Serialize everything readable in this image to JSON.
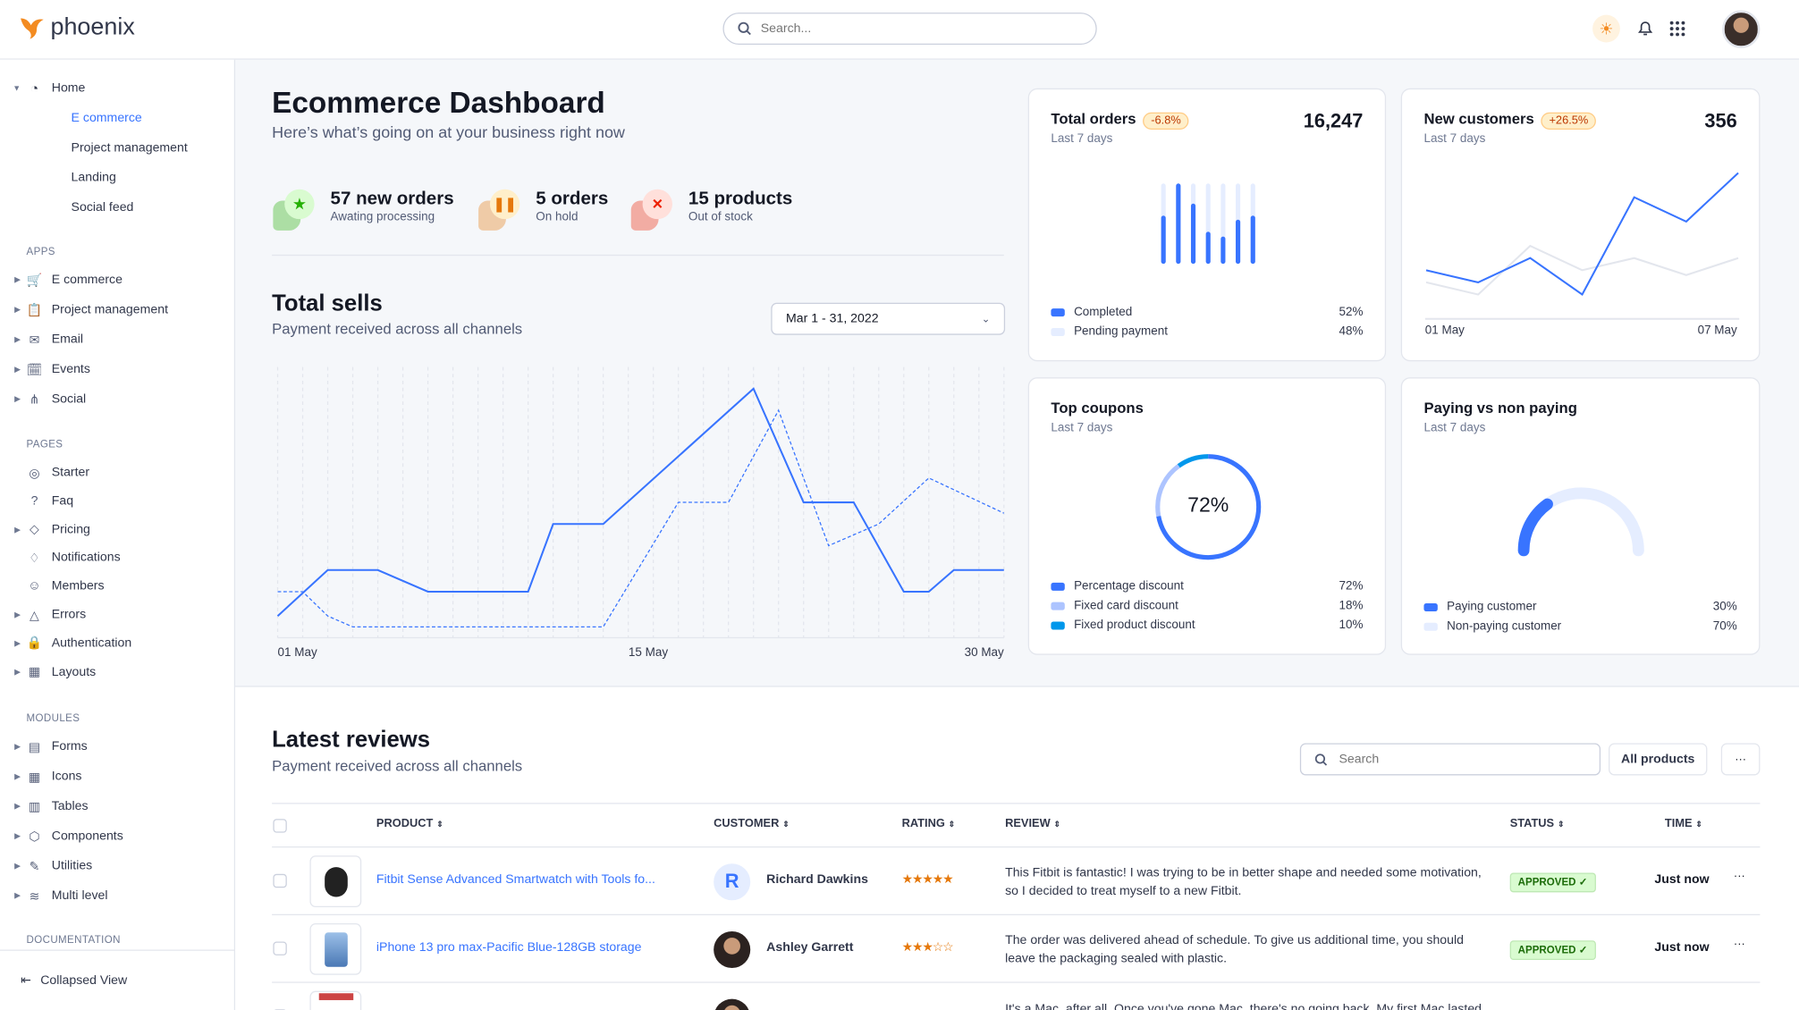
{
  "app": {
    "name": "phoenix",
    "search_placeholder": "Search..."
  },
  "colors": {
    "primary": "#3874ff",
    "light": "#e5edff",
    "success": "#25b003",
    "warning": "#e5780b",
    "danger": "#ed2000"
  },
  "sidebar": {
    "home": {
      "label": "Home",
      "children": [
        "E commerce",
        "Project management",
        "Landing",
        "Social feed"
      ],
      "active": "E commerce"
    },
    "sections": [
      {
        "title": "APPS",
        "items": [
          {
            "label": "E commerce",
            "icon": "cart-icon",
            "caret": true
          },
          {
            "label": "Project management",
            "icon": "clipboard-icon",
            "caret": true
          },
          {
            "label": "Email",
            "icon": "mail-icon",
            "caret": true
          },
          {
            "label": "Events",
            "icon": "bookmark-icon",
            "caret": true
          },
          {
            "label": "Social",
            "icon": "share-icon",
            "caret": true
          }
        ]
      },
      {
        "title": "PAGES",
        "items": [
          {
            "label": "Starter",
            "icon": "compass-icon",
            "caret": false
          },
          {
            "label": "Faq",
            "icon": "help-icon",
            "caret": false
          },
          {
            "label": "Pricing",
            "icon": "tag-icon",
            "caret": true
          },
          {
            "label": "Notifications",
            "icon": "bell-icon",
            "caret": false
          },
          {
            "label": "Members",
            "icon": "users-icon",
            "caret": false
          },
          {
            "label": "Errors",
            "icon": "alert-icon",
            "caret": true
          },
          {
            "label": "Authentication",
            "icon": "lock-icon",
            "caret": true
          },
          {
            "label": "Layouts",
            "icon": "layout-icon",
            "caret": true
          }
        ]
      },
      {
        "title": "MODULES",
        "items": [
          {
            "label": "Forms",
            "icon": "file-icon",
            "caret": true
          },
          {
            "label": "Icons",
            "icon": "grid-icon",
            "caret": true
          },
          {
            "label": "Tables",
            "icon": "columns-icon",
            "caret": true
          },
          {
            "label": "Components",
            "icon": "package-icon",
            "caret": true
          },
          {
            "label": "Utilities",
            "icon": "tool-icon",
            "caret": true
          },
          {
            "label": "Multi level",
            "icon": "layers-icon",
            "caret": true
          }
        ]
      },
      {
        "title": "DOCUMENTATION",
        "items": []
      }
    ],
    "collapse": "Collapsed View"
  },
  "header": {
    "title": "Ecommerce Dashboard",
    "subtitle": "Here’s what’s going on at your business right now"
  },
  "stats": [
    {
      "title": "57 new orders",
      "sub": "Awating processing",
      "icon": "star-icon",
      "color": "#25b003",
      "bg": "#d9fbd0"
    },
    {
      "title": "5 orders",
      "sub": "On hold",
      "icon": "pause-icon",
      "color": "#e5780b",
      "bg": "#ffefca"
    },
    {
      "title": "15 products",
      "sub": "Out of stock",
      "icon": "x-icon",
      "color": "#ed2000",
      "bg": "#ffe0db"
    }
  ],
  "sells": {
    "title": "Total sells",
    "subtitle": "Payment received across all channels",
    "date": "Mar 1 - 31, 2022"
  },
  "chart_data": [
    {
      "type": "line",
      "title": "Total sells",
      "x_ticks": [
        "01 May",
        "15 May",
        "30 May"
      ],
      "series": [
        {
          "style": "solid",
          "points": [
            [
              1,
              8
            ],
            [
              3,
              25
            ],
            [
              5,
              25
            ],
            [
              7,
              17
            ],
            [
              11,
              17
            ],
            [
              12,
              42
            ],
            [
              14,
              42
            ],
            [
              20,
              92
            ],
            [
              22,
              50
            ],
            [
              24,
              50
            ],
            [
              26,
              17
            ],
            [
              27,
              17
            ],
            [
              28,
              25
            ],
            [
              30,
              25
            ]
          ]
        },
        {
          "style": "dashed",
          "points": [
            [
              1,
              17
            ],
            [
              2,
              17
            ],
            [
              3,
              8
            ],
            [
              4,
              4
            ],
            [
              14,
              4
            ],
            [
              17,
              50
            ],
            [
              19,
              50
            ],
            [
              21,
              84
            ],
            [
              23,
              34
            ],
            [
              25,
              42
            ],
            [
              27,
              59
            ],
            [
              30,
              46
            ]
          ]
        }
      ],
      "xlim": [
        1,
        30
      ],
      "ylim": [
        0,
        100
      ],
      "grid": "vertical"
    },
    {
      "type": "bar",
      "title": "Total orders",
      "completed_fraction": [
        0.6,
        1,
        0.75,
        0.4,
        0.34,
        0.55,
        0.6
      ]
    },
    {
      "type": "line",
      "title": "New customers",
      "x_ticks": [
        "01 May",
        "07 May"
      ],
      "series": [
        {
          "color": "#3874ff",
          "values": [
            40,
            30,
            50,
            20,
            100,
            80,
            120
          ]
        },
        {
          "color": "#e3e6ed",
          "values": [
            30,
            20,
            60,
            40,
            50,
            36,
            50
          ]
        }
      ],
      "ylim": [
        0,
        130
      ]
    },
    {
      "type": "pie",
      "title": "Top coupons",
      "values": [
        72,
        18,
        10
      ]
    },
    {
      "type": "pie",
      "title": "Paying vs non paying",
      "values": [
        30,
        70
      ]
    }
  ],
  "orders": {
    "title": "Total orders",
    "badge": "-6.8%",
    "value": "16,247",
    "sub": "Last 7 days",
    "legend": [
      {
        "label": "Completed",
        "value": "52%",
        "color": "#3874ff"
      },
      {
        "label": "Pending payment",
        "value": "48%",
        "color": "#e5edff"
      }
    ]
  },
  "customers": {
    "title": "New customers",
    "badge": "+26.5%",
    "value": "356",
    "sub": "Last 7 days",
    "x_start": "01 May",
    "x_end": "07 May"
  },
  "coupons": {
    "title": "Top coupons",
    "sub": "Last 7 days",
    "center": "72%",
    "legend": [
      {
        "label": "Percentage discount",
        "value": "72%",
        "color": "#3874ff"
      },
      {
        "label": "Fixed card discount",
        "value": "18%",
        "color": "#adc4ff"
      },
      {
        "label": "Fixed product discount",
        "value": "10%",
        "color": "#0097eb"
      }
    ]
  },
  "paying": {
    "title": "Paying vs non paying",
    "sub": "Last 7 days",
    "legend": [
      {
        "label": "Paying customer",
        "value": "30%",
        "color": "#3874ff"
      },
      {
        "label": "Non-paying customer",
        "value": "70%",
        "color": "#e5edff"
      }
    ]
  },
  "reviews": {
    "title": "Latest reviews",
    "subtitle": "Payment received across all channels",
    "search_placeholder": "Search",
    "filter": "All products",
    "more": "···",
    "columns": [
      "PRODUCT",
      "CUSTOMER",
      "RATING",
      "REVIEW",
      "STATUS",
      "TIME"
    ],
    "rows": [
      {
        "product": "Fitbit Sense Advanced Smartwatch with Tools fo...",
        "customer": "Richard Dawkins",
        "initial": "R",
        "rating": 5,
        "review": "This Fitbit is fantastic! I was trying to be in better shape and needed some motivation, so I decided to treat myself to a new Fitbit.",
        "status": "APPROVED ✓",
        "time": "Just now"
      },
      {
        "product": "iPhone 13 pro max-Pacific Blue-128GB storage",
        "customer": "Ashley Garrett",
        "initial": "",
        "rating": 3,
        "review": "The order was delivered ahead of schedule. To give us additional time, you should leave the packaging sealed with plastic.",
        "status": "APPROVED ✓",
        "time": "Just now"
      },
      {
        "product": "",
        "customer": "",
        "initial": "",
        "rating": 0,
        "review": "It's a Mac, after all. Once you've gone Mac, there's no going back. My first Mac lasted",
        "status": "",
        "time": ""
      }
    ]
  }
}
